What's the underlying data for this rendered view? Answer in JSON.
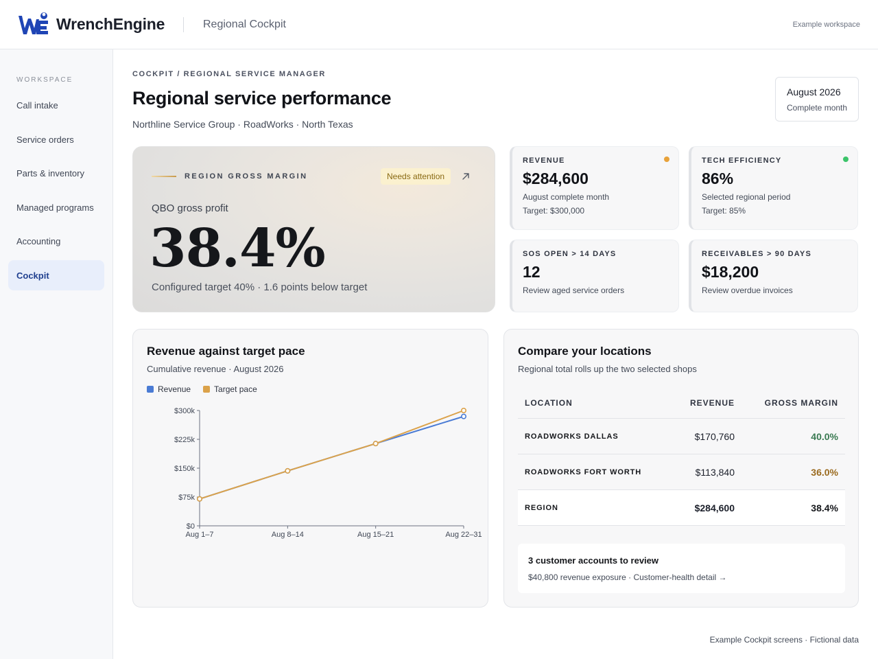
{
  "header": {
    "brand": "WrenchEngine",
    "app_title": "Regional Cockpit",
    "workspace_tag": "Example workspace",
    "colors": {
      "brand_blue": "#1f45b5",
      "accent_gold": "#d49b3a"
    }
  },
  "sidebar": {
    "heading": "WORKSPACE",
    "items": [
      {
        "label": "Call intake",
        "active": false
      },
      {
        "label": "Service orders",
        "active": false
      },
      {
        "label": "Parts & inventory",
        "active": false
      },
      {
        "label": "Managed programs",
        "active": false
      },
      {
        "label": "Accounting",
        "active": false
      },
      {
        "label": "Cockpit",
        "active": true
      }
    ]
  },
  "page": {
    "breadcrumb": "COCKPIT / REGIONAL SERVICE MANAGER",
    "title": "Regional service performance",
    "subtitle": "Northline Service Group · RoadWorks · North Texas",
    "period": {
      "month": "August 2026",
      "note": "Complete month"
    }
  },
  "hero": {
    "label": "REGION GROSS MARGIN",
    "badge": "Needs attention",
    "metric_label": "QBO gross profit",
    "value": "38.4%",
    "note": "Configured target 40% · 1.6 points below target"
  },
  "kpis": {
    "revenue": {
      "label": "REVENUE",
      "value": "$284,600",
      "line1": "August complete month",
      "line2": "Target: $300,000",
      "status_color": "#e8a23a"
    },
    "tech": {
      "label": "TECH EFFICIENCY",
      "value": "86%",
      "line1": "Selected regional period",
      "line2": "Target: 85%",
      "status_color": "#3cc46a"
    },
    "sos": {
      "label": "SOS OPEN > 14 DAYS",
      "value": "12",
      "line1": "Review aged service orders"
    },
    "receivables": {
      "label": "RECEIVABLES > 90 DAYS",
      "value": "$18,200",
      "line1": "Review overdue invoices"
    }
  },
  "revenue_panel": {
    "title": "Revenue against target pace",
    "subtitle": "Cumulative revenue · August 2026"
  },
  "chart_data": {
    "type": "line",
    "categories": [
      "Aug 1–7",
      "Aug 8–14",
      "Aug 15–21",
      "Aug 22–31"
    ],
    "series": [
      {
        "name": "Revenue",
        "color": "#4a7bd4",
        "values": [
          70,
          143,
          214,
          284.6
        ]
      },
      {
        "name": "Target pace",
        "color": "#dba24a",
        "values": [
          70,
          143,
          214,
          300
        ]
      }
    ],
    "yticks": [
      0,
      75,
      150,
      225,
      300
    ],
    "ytick_labels": [
      "$0",
      "$75k",
      "$150k",
      "$225k",
      "$300k"
    ],
    "ylim": [
      0,
      300
    ],
    "grid": false,
    "legend": "top-left"
  },
  "locations_panel": {
    "title": "Compare your locations",
    "subtitle": "Regional total rolls up the two selected shops",
    "columns": [
      "LOCATION",
      "REVENUE",
      "GROSS MARGIN"
    ],
    "rows": [
      {
        "location": "ROADWORKS DALLAS",
        "revenue": "$170,760",
        "margin": "40.0%",
        "margin_color": "#3a7a52"
      },
      {
        "location": "ROADWORKS FORT WORTH",
        "revenue": "$113,840",
        "margin": "36.0%",
        "margin_color": "#9a6a1e"
      },
      {
        "location": "REGION",
        "revenue": "$284,600",
        "margin": "38.4%",
        "margin_color": "#15171b"
      }
    ],
    "review": {
      "title": "3 customer accounts to review",
      "note": "$40,800 revenue exposure · Customer-health detail →"
    }
  },
  "footer": {
    "note": "Example Cockpit screens · Fictional data"
  }
}
